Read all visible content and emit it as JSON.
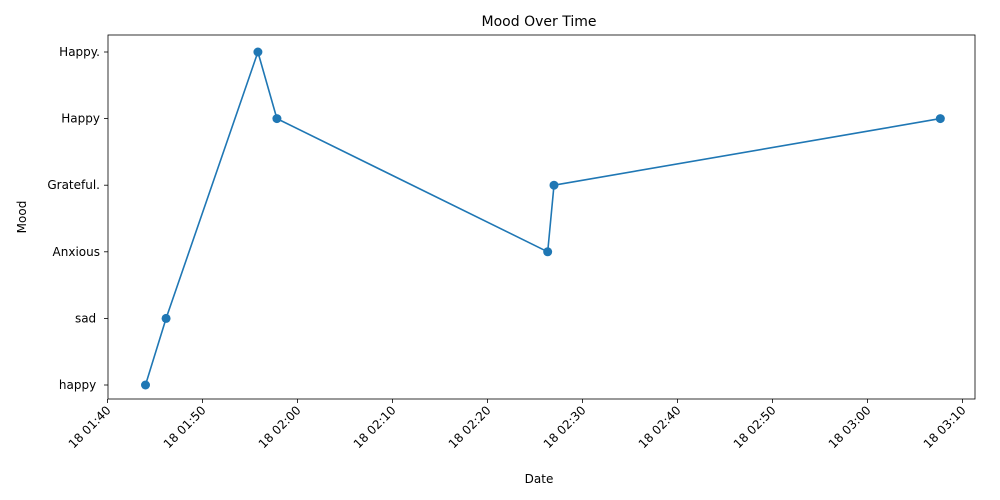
{
  "chart_data": {
    "type": "line",
    "title": "Mood Over Time",
    "xlabel": "Date",
    "ylabel": "Mood",
    "grid": false,
    "color": "#1f77b4",
    "categories": [
      " happy ",
      " sad ",
      "Anxious",
      "Grateful.",
      "Happy",
      "Happy."
    ],
    "x_ticks": [
      "18 01:40",
      "18 01:50",
      "18 02:00",
      "18 02:10",
      "18 02:20",
      "18 02:30",
      "18 02:40",
      "18 02:50",
      "18 03:00",
      "18 03:10"
    ],
    "series": [
      {
        "points": [
          {
            "x": "01:44:00",
            "y": " happy "
          },
          {
            "x": "01:46:10",
            "y": " sad "
          },
          {
            "x": "01:55:50",
            "y": "Happy."
          },
          {
            "x": "01:57:50",
            "y": "Happy"
          },
          {
            "x": "02:26:20",
            "y": "Anxious"
          },
          {
            "x": "02:27:00",
            "y": "Grateful."
          },
          {
            "x": "03:07:40",
            "y": "Happy"
          }
        ]
      }
    ]
  }
}
